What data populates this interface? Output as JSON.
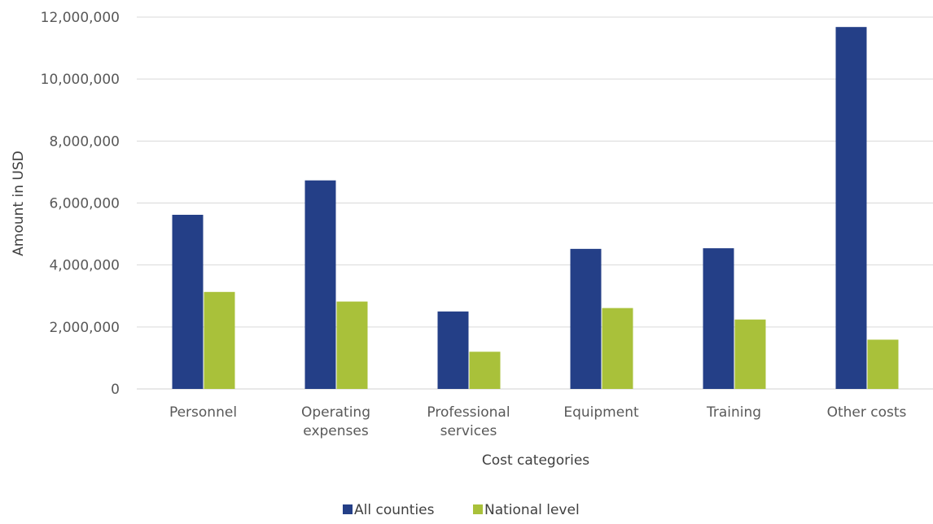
{
  "chart_data": {
    "type": "bar",
    "categories": [
      [
        "Personnel"
      ],
      [
        "Operating",
        "expenses"
      ],
      [
        "Professional",
        "services"
      ],
      [
        "Equipment"
      ],
      [
        "Training"
      ],
      [
        "Other costs"
      ]
    ],
    "series": [
      {
        "name": "All counties",
        "color": "#243f87",
        "values": [
          5620000,
          6730000,
          2500000,
          4520000,
          4540000,
          11680000
        ]
      },
      {
        "name": "National level",
        "color": "#a9c13a",
        "values": [
          3130000,
          2820000,
          1200000,
          2610000,
          2240000,
          1590000
        ]
      }
    ],
    "xlabel": "Cost categories",
    "ylabel": "Amount in USD",
    "ylim": [
      0,
      12000000
    ],
    "yticks": [
      "0",
      "2,000,000",
      "4,000,000",
      "6,000,000",
      "8,000,000",
      "10,000,000",
      "12,000,000"
    ],
    "grid": true,
    "legend_position": "bottom",
    "gridline_color": "#d9d9d9"
  }
}
